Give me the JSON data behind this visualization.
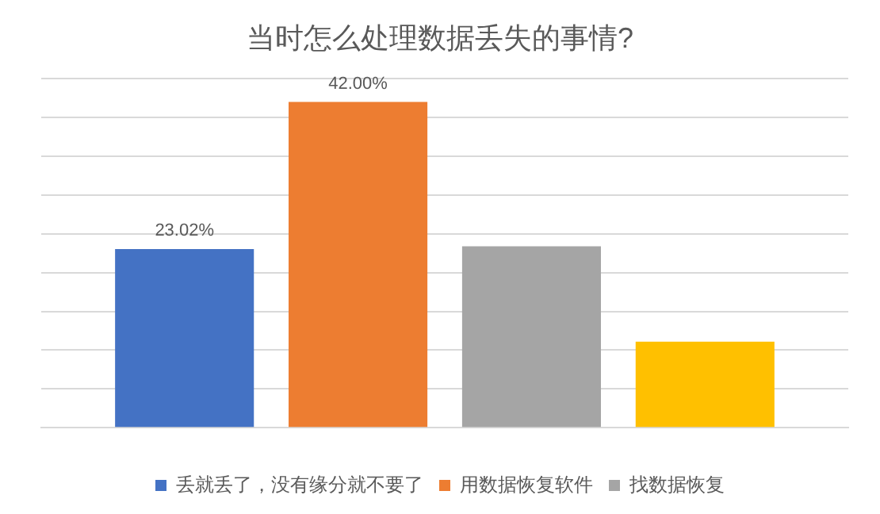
{
  "chart_data": {
    "type": "bar",
    "title": "当时怎么处理数据丢失的事情?",
    "categories": [
      null
    ],
    "series": [
      {
        "name": "丢就丢了，没有缘分就不要了",
        "color": "#4472c4",
        "values": [
          23.02
        ],
        "value_labels": [
          "23.02%"
        ]
      },
      {
        "name": "用数据恢复软件",
        "color": "#ed7d31",
        "values": [
          42.0
        ],
        "value_labels": [
          "42.00%"
        ]
      },
      {
        "name": "找数据恢复",
        "color": "#a5a5a5",
        "values": [
          23.4
        ]
      },
      {
        "color": "#ffc000",
        "values": [
          11.1
        ]
      }
    ],
    "ylim": [
      0,
      45
    ],
    "yticks": [
      {
        "value": 0,
        "label": null
      },
      {
        "value": 5,
        "label": null
      },
      {
        "value": 10,
        "label": null
      },
      {
        "value": 15,
        "label": null
      },
      {
        "value": 20,
        "label": null
      },
      {
        "value": 25,
        "label": null
      },
      {
        "value": 30,
        "label": null
      },
      {
        "value": 35,
        "label": null
      },
      {
        "value": 40,
        "label": null
      },
      {
        "value": 45,
        "label": null
      }
    ],
    "grid": "y",
    "legend": "bottom"
  }
}
